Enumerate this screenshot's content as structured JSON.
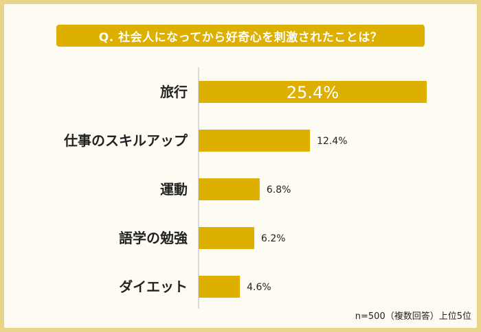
{
  "colors": {
    "background": "#e8d58a",
    "panel": "#fdfbf2",
    "accent": "#ddb000",
    "axis": "#cfcfcf",
    "text": "#222222"
  },
  "footnote": "n=500（複数回答）上位5位",
  "chart_data": {
    "type": "bar",
    "orientation": "horizontal",
    "title": "Q. 社会人になってから好奇心を刺激されたことは？",
    "categories": [
      "旅行",
      "仕事のスキルアップ",
      "運動",
      "語学の勉強",
      "ダイエット"
    ],
    "values": [
      25.4,
      12.4,
      6.8,
      6.2,
      4.6
    ],
    "value_labels": [
      "25.4%",
      "12.4%",
      "6.8%",
      "6.2%",
      "4.6%"
    ],
    "xlim": [
      0,
      26.5
    ],
    "grid": false,
    "legend": "none"
  }
}
